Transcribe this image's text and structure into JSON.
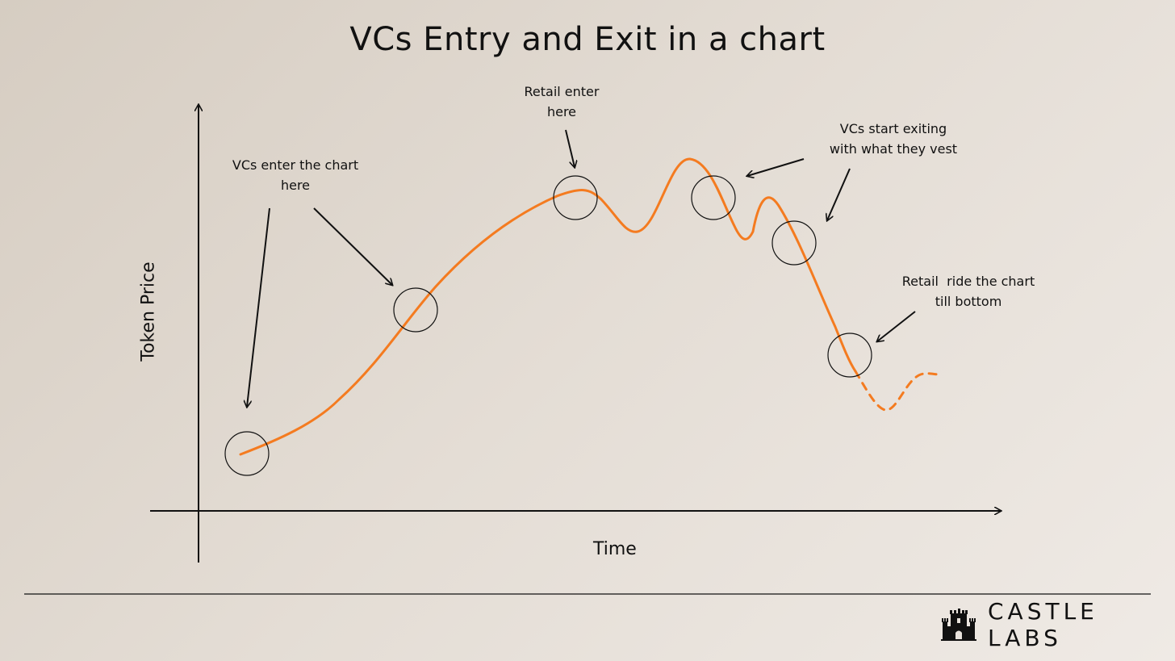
{
  "title": "VCs Entry and Exit in a chart",
  "axes": {
    "x_label": "Time",
    "y_label": "Token Price"
  },
  "annotations": {
    "vc_enter": [
      "VCs enter the chart",
      "here"
    ],
    "retail_enter": [
      "Retail enter",
      "here"
    ],
    "vc_exit": [
      "VCs start exiting",
      "with what they vest"
    ],
    "retail_ride": [
      "Retail  ride the chart",
      "till bottom"
    ]
  },
  "brand": {
    "name": "CASTLE LABS",
    "logo_icon": "castle-icon"
  },
  "colors": {
    "price_line": "#f47b20",
    "ink": "#111111"
  }
}
